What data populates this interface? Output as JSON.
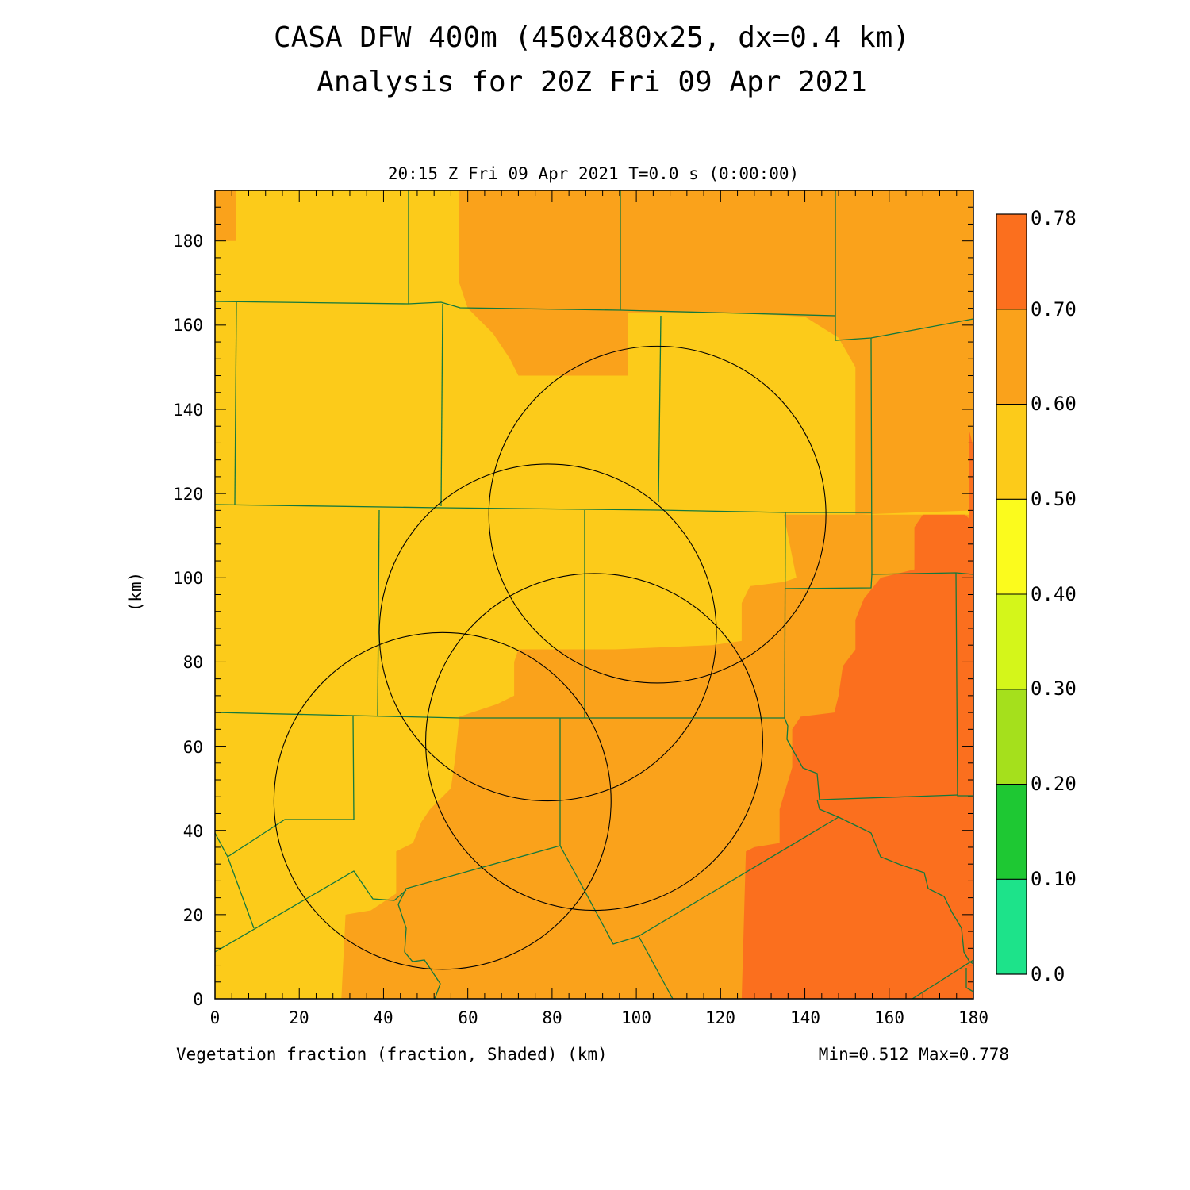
{
  "title_line1": "CASA DFW 400m (450x480x25, dx=0.4 km)",
  "title_line2": "Analysis for 20Z Fri 09 Apr 2021",
  "time_label": "20:15 Z Fri 09 Apr 2021    T=0.0 s (0:00:00)",
  "field_label": "Vegetation fraction (fraction, Shaded)  (km)",
  "minmax_label": "Min=0.512 Max=0.778",
  "ylabel": "(km)",
  "x_ticks": [
    "0",
    "20",
    "40",
    "60",
    "80",
    "100",
    "120",
    "140",
    "160",
    "180"
  ],
  "y_ticks": [
    "0",
    "20",
    "40",
    "60",
    "80",
    "100",
    "120",
    "140",
    "160",
    "180"
  ],
  "colorbar": {
    "labels": [
      "0.0",
      "0.10",
      "0.20",
      "0.30",
      "0.40",
      "0.50",
      "0.60",
      "0.70",
      "0.78"
    ],
    "colors": [
      "#1de38a",
      "#1ec833",
      "#a5e01c",
      "#d4f61a",
      "#fbfb1d",
      "#fccb1a",
      "#faa21b",
      "#fb6f1e"
    ]
  },
  "colors": {
    "low_veg": "#fccb1a",
    "mid_veg": "#faa21b",
    "high_veg": "#fb6f1e",
    "county_lines": "#14783c",
    "radar_rings": "#000000"
  },
  "chart_data": {
    "type": "heatmap",
    "field": "Vegetation fraction",
    "units": "fraction",
    "min": 0.512,
    "max": 0.778,
    "contour_levels": [
      0.0,
      0.1,
      0.2,
      0.3,
      0.4,
      0.5,
      0.6,
      0.7,
      0.78
    ],
    "xlim": [
      0,
      180
    ],
    "ylim": [
      0,
      192
    ],
    "xlabel": "(km)",
    "ylabel": "(km)",
    "radar_rings_km": [
      {
        "center": [
          105,
          115
        ],
        "radius": 40
      },
      {
        "center": [
          79,
          87
        ],
        "radius": 40
      },
      {
        "center": [
          90,
          61
        ],
        "radius": 40
      },
      {
        "center": [
          54,
          47
        ],
        "radius": 40
      }
    ],
    "regions": [
      {
        "level": "mid",
        "polygon": [
          [
            0,
            192
          ],
          [
            5,
            192
          ],
          [
            5,
            180
          ],
          [
            0,
            180
          ]
        ]
      },
      {
        "level": "mid",
        "polygon": [
          [
            58,
            192
          ],
          [
            180,
            192
          ],
          [
            180,
            116
          ],
          [
            152,
            115
          ],
          [
            152,
            150
          ],
          [
            148,
            157
          ],
          [
            140,
            162
          ],
          [
            122,
            163
          ],
          [
            98,
            163
          ],
          [
            98,
            148
          ],
          [
            88,
            148
          ],
          [
            72,
            148
          ],
          [
            70,
            152
          ],
          [
            66,
            158
          ],
          [
            60,
            164
          ],
          [
            58,
            170
          ]
        ]
      },
      {
        "level": "mid",
        "polygon": [
          [
            180,
            115
          ],
          [
            135,
            115
          ],
          [
            138,
            100
          ],
          [
            135,
            99
          ],
          [
            127,
            98
          ],
          [
            125,
            94
          ],
          [
            125,
            85
          ],
          [
            118,
            84
          ],
          [
            95,
            83
          ],
          [
            72,
            83
          ],
          [
            71,
            80
          ],
          [
            71,
            72
          ],
          [
            67,
            70
          ],
          [
            58,
            67
          ],
          [
            57,
            57
          ],
          [
            56,
            50
          ],
          [
            51,
            45
          ],
          [
            49,
            42
          ],
          [
            47,
            37
          ],
          [
            43,
            35
          ],
          [
            43,
            25
          ],
          [
            37,
            21
          ],
          [
            31,
            20
          ],
          [
            30,
            0
          ],
          [
            180,
            0
          ]
        ]
      },
      {
        "level": "high",
        "polygon": [
          [
            180,
            116
          ],
          [
            180,
            131
          ],
          [
            179,
            135
          ],
          [
            179,
            114
          ],
          [
            178,
            115
          ],
          [
            168,
            115
          ],
          [
            166,
            112
          ],
          [
            166,
            102
          ],
          [
            162,
            101
          ],
          [
            158,
            100
          ],
          [
            154,
            95
          ],
          [
            152,
            90
          ],
          [
            152,
            83
          ],
          [
            149,
            79
          ],
          [
            148,
            72
          ],
          [
            147,
            68
          ],
          [
            139,
            67
          ],
          [
            137,
            64
          ],
          [
            137,
            55
          ],
          [
            134,
            45
          ],
          [
            134,
            37
          ],
          [
            128,
            36
          ],
          [
            126,
            35
          ],
          [
            125,
            0
          ],
          [
            180,
            0
          ]
        ]
      }
    ]
  }
}
